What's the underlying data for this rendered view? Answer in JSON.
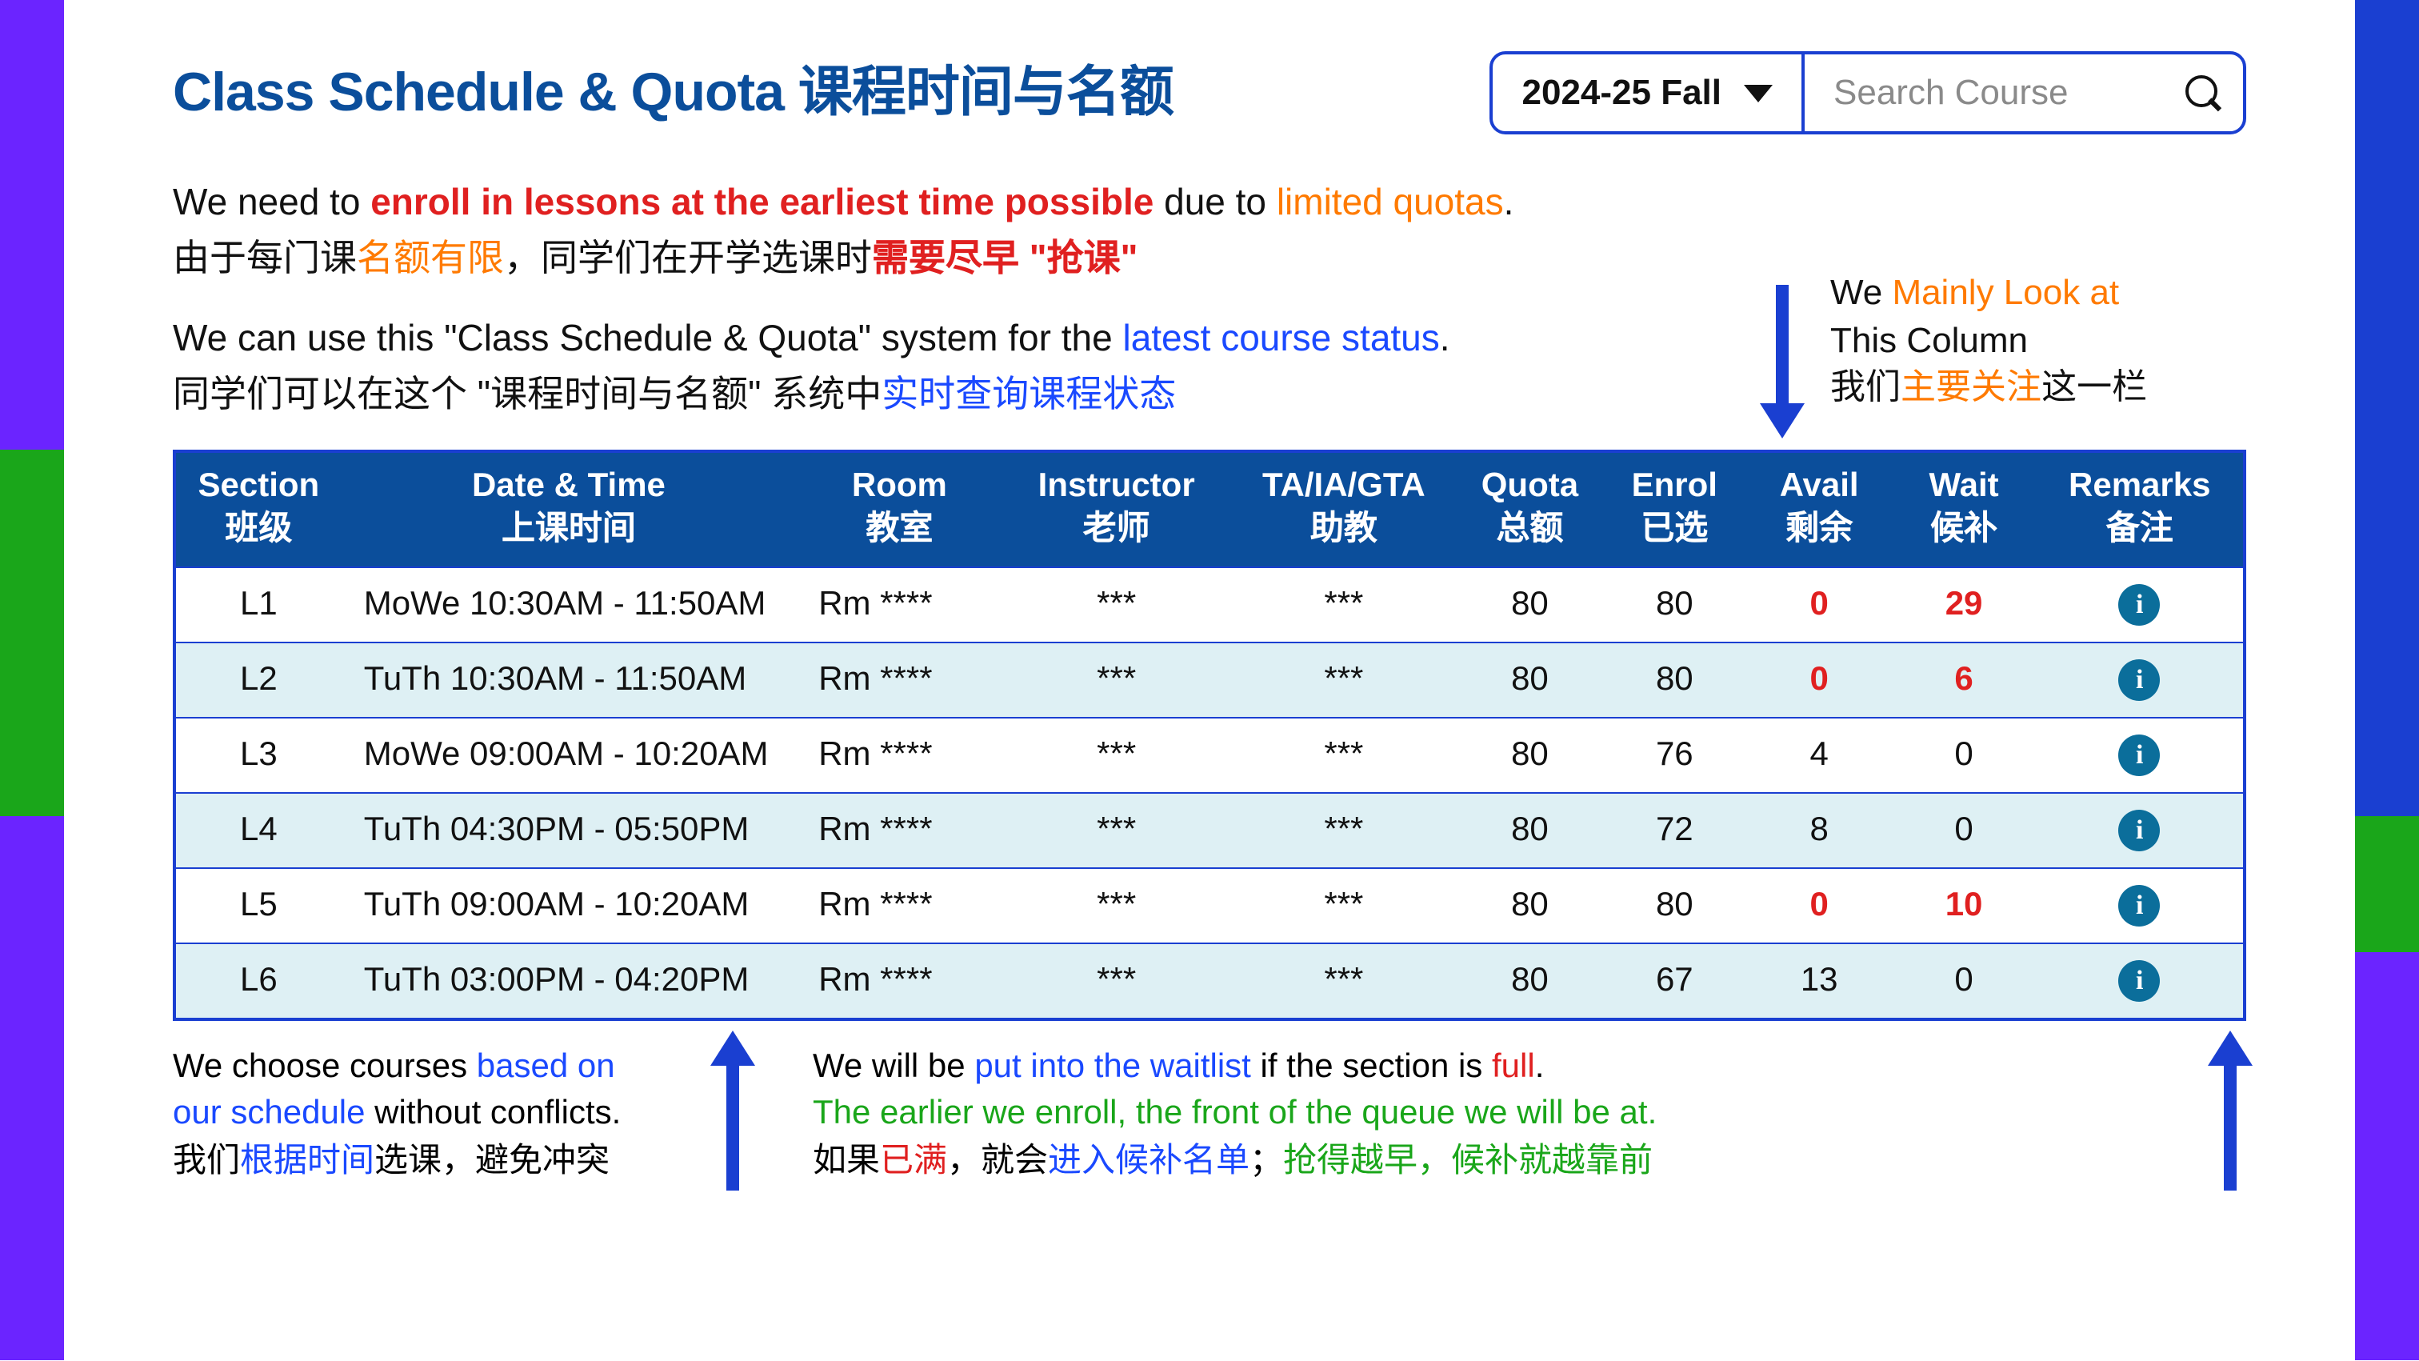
{
  "colors": {
    "brand_blue": "#0b4e9b",
    "border_blue": "#1a3fd1",
    "link_blue": "#1a49ff",
    "red": "#e02020",
    "orange": "#ff7a00",
    "green": "#1aa61a",
    "row_alt_bg": "#def0f4",
    "info_badge_bg": "#0b6e9b",
    "left_border_segments": [
      "#6b24ff",
      "#1aa61a",
      "#6b24ff"
    ],
    "right_border_segments": [
      "#1a3fd1",
      "#1aa61a",
      "#6b24ff"
    ],
    "left_border_heights_pct": [
      33,
      27,
      40
    ],
    "right_border_heights_pct": [
      60,
      10,
      30
    ]
  },
  "header": {
    "title": "Class Schedule & Quota 课程时间与名额",
    "term_selected": "2024-25 Fall",
    "search_placeholder": "Search Course"
  },
  "intro": {
    "l1_a": "We need to ",
    "l1_b": "enroll in lessons at the earliest time possible",
    "l1_c": " due to ",
    "l1_d": "limited quotas",
    "l1_e": ".",
    "l2_a": "由于每门课",
    "l2_b": "名额有限",
    "l2_c": "，同学们在开学选课时",
    "l2_d": "需要尽早 \"抢课\"",
    "l3_a": "We can use this \"Class Schedule & Quota\" system for the ",
    "l3_b": "latest course status",
    "l3_c": ".",
    "l4_a": "同学们可以在这个 \"课程时间与名额\" 系统中",
    "l4_b": "实时查询课程状态"
  },
  "side_note": {
    "l1_a": "We ",
    "l1_b": "Mainly Look at",
    "l2": "This Column",
    "l3_a": "我们",
    "l3_b": "主要关注",
    "l3_c": "这一栏"
  },
  "table": {
    "columns": [
      {
        "en": "Section",
        "zh": "班级",
        "w": "8%"
      },
      {
        "en": "Date & Time",
        "zh": "上课时间",
        "w": "22%",
        "align": "left"
      },
      {
        "en": "Room",
        "zh": "教室",
        "w": "10%",
        "align": "left"
      },
      {
        "en": "Instructor",
        "zh": "老师",
        "w": "11%"
      },
      {
        "en": "TA/IA/GTA",
        "zh": "助教",
        "w": "11%"
      },
      {
        "en": "Quota",
        "zh": "总额",
        "w": "7%"
      },
      {
        "en": "Enrol",
        "zh": "已选",
        "w": "7%"
      },
      {
        "en": "Avail",
        "zh": "剩余",
        "w": "7%"
      },
      {
        "en": "Wait",
        "zh": "候补",
        "w": "7%"
      },
      {
        "en": "Remarks",
        "zh": "备注",
        "w": "10%"
      }
    ],
    "rows": [
      {
        "section": "L1",
        "datetime": "MoWe 10:30AM - 11:50AM",
        "room": "Rm ****",
        "instructor": "***",
        "ta": "***",
        "quota": 80,
        "enrol": 80,
        "avail": 0,
        "wait": 29,
        "full": true
      },
      {
        "section": "L2",
        "datetime": "TuTh 10:30AM - 11:50AM",
        "room": "Rm ****",
        "instructor": "***",
        "ta": "***",
        "quota": 80,
        "enrol": 80,
        "avail": 0,
        "wait": 6,
        "full": true
      },
      {
        "section": "L3",
        "datetime": "MoWe 09:00AM - 10:20AM",
        "room": "Rm ****",
        "instructor": "***",
        "ta": "***",
        "quota": 80,
        "enrol": 76,
        "avail": 4,
        "wait": 0,
        "full": false
      },
      {
        "section": "L4",
        "datetime": "TuTh 04:30PM - 05:50PM",
        "room": "Rm ****",
        "instructor": "***",
        "ta": "***",
        "quota": 80,
        "enrol": 72,
        "avail": 8,
        "wait": 0,
        "full": false
      },
      {
        "section": "L5",
        "datetime": "TuTh 09:00AM - 10:20AM",
        "room": "Rm ****",
        "instructor": "***",
        "ta": "***",
        "quota": 80,
        "enrol": 80,
        "avail": 0,
        "wait": 10,
        "full": true
      },
      {
        "section": "L6",
        "datetime": "TuTh 03:00PM - 04:20PM",
        "room": "Rm ****",
        "instructor": "***",
        "ta": "***",
        "quota": 80,
        "enrol": 67,
        "avail": 13,
        "wait": 0,
        "full": false
      }
    ],
    "info_glyph": "i"
  },
  "foot": {
    "c1_l1_a": "We choose courses ",
    "c1_l1_b": "based on",
    "c1_l2_a": "our schedule",
    "c1_l2_b": " without conflicts.",
    "c1_l3_a": "我们",
    "c1_l3_b": "根据时间",
    "c1_l3_c": "选课，避免冲突",
    "c2_l1_a": "We will be ",
    "c2_l1_b": "put into the waitlist",
    "c2_l1_c": " if the section is ",
    "c2_l1_d": "full",
    "c2_l1_e": ".",
    "c2_l2": "The earlier we enroll, the front of the queue we will be at.",
    "c2_l3_a": "如果",
    "c2_l3_b": "已满",
    "c2_l3_c": "，就会",
    "c2_l3_d": "进入候补名单",
    "c2_l3_e": "；",
    "c2_l3_f": "抢得越早，候补就越靠前"
  }
}
